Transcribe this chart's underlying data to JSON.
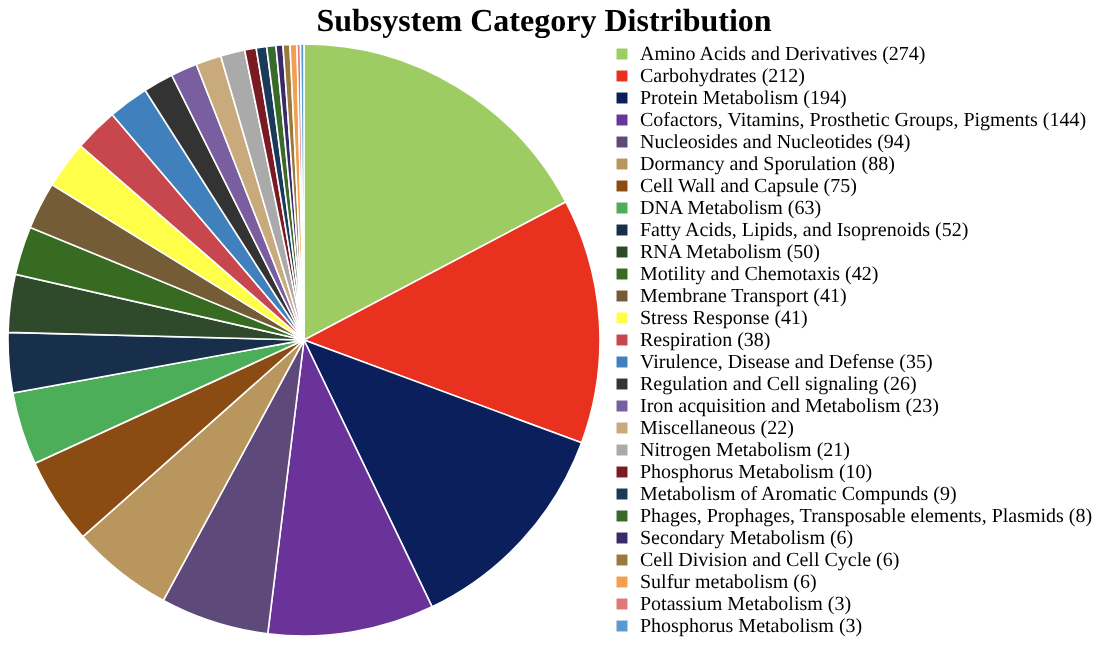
{
  "chart_data": {
    "type": "pie",
    "title": "Subsystem Category Distribution",
    "legend": "right",
    "categories": [
      "Amino Acids and Derivatives (274)",
      "Carbohydrates (212)",
      "Protein Metabolism (194)",
      "Cofactors, Vitamins, Prosthetic Groups, Pigments (144)",
      "Nucleosides and Nucleotides (94)",
      "Dormancy and Sporulation (88)",
      "Cell Wall and Capsule (75)",
      "DNA Metabolism (63)",
      "Fatty Acids, Lipids, and Isoprenoids (52)",
      "RNA Metabolism (50)",
      "Motility and Chemotaxis (42)",
      "Membrane Transport (41)",
      "Stress Response (41)",
      "Respiration (38)",
      "Virulence, Disease and Defense (35)",
      "Regulation and Cell signaling (26)",
      "Iron acquisition and Metabolism (23)",
      "Miscellaneous (22)",
      "Nitrogen Metabolism (21)",
      "Phosphorus Metabolism (10)",
      "Metabolism of Aromatic Compunds (9)",
      "Phages, Prophages, Transposable elements, Plasmids (8)",
      "Secondary Metabolism (6)",
      "Cell Division and Cell Cycle (6)",
      "Sulfur metabolism (6)",
      "Potassium Metabolism (3)",
      "Phosphorus Metabolism (3)"
    ],
    "values": [
      274,
      212,
      194,
      144,
      94,
      88,
      75,
      63,
      52,
      50,
      42,
      41,
      41,
      38,
      35,
      26,
      23,
      22,
      21,
      10,
      9,
      8,
      6,
      6,
      6,
      3,
      3
    ],
    "colors": [
      "#9ccc62",
      "#e8321f",
      "#0a1f5c",
      "#6a3399",
      "#5e4a7a",
      "#b8965e",
      "#8b4c14",
      "#4cae58",
      "#172f4a",
      "#2f4a2a",
      "#386b22",
      "#735c36",
      "#ffff4a",
      "#c8464e",
      "#3f80bd",
      "#333333",
      "#7a5fa0",
      "#c8aa7d",
      "#aaaaaa",
      "#7a1a22",
      "#1a3a5a",
      "#3a6a2a",
      "#3a2a6a",
      "#9a7a3a",
      "#f0a050",
      "#e07a7a",
      "#5a9ad0"
    ]
  }
}
